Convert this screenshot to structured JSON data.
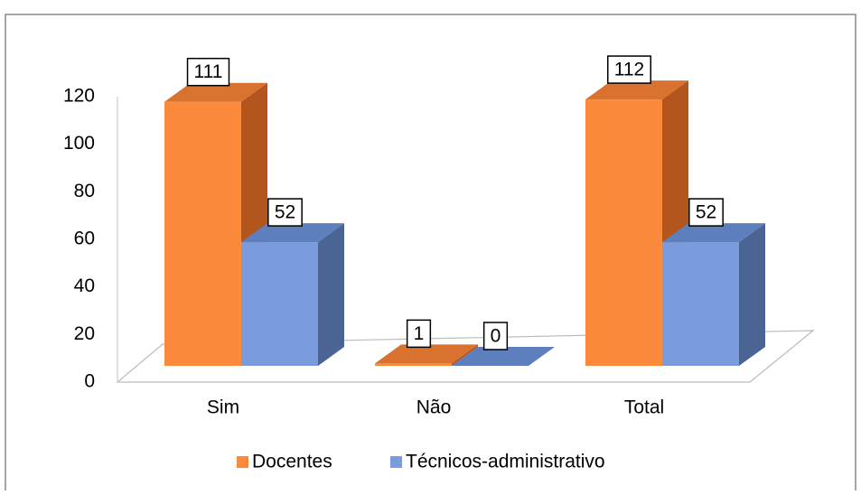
{
  "chart_data": {
    "type": "bar3d",
    "categories": [
      "Sim",
      "Não",
      "Total"
    ],
    "series": [
      {
        "name": "Docentes",
        "color": "#fb8a3c",
        "values": [
          111,
          1,
          112
        ]
      },
      {
        "name": "Técnicos-administrativo",
        "color": "#7a9cdc",
        "values": [
          52,
          0,
          52
        ]
      }
    ],
    "ylim": [
      0,
      120
    ],
    "yticks": [
      0,
      20,
      40,
      60,
      80,
      100,
      120
    ],
    "legend": "bottom"
  }
}
